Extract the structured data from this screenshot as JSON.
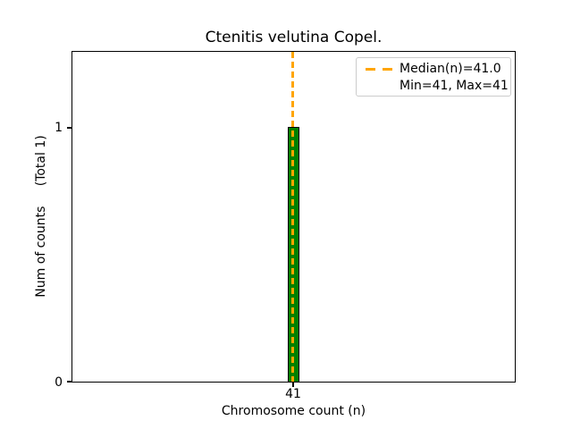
{
  "chart_data": {
    "type": "bar",
    "title": "Ctenitis velutina Copel.",
    "xlabel": "Chromosome count (n)",
    "ylabel": "Num of counts     (Total 1)",
    "categories": [
      "41"
    ],
    "x": [
      41
    ],
    "values": [
      1
    ],
    "xtick_labels": [
      "41"
    ],
    "ytick_labels": [
      "0",
      "1"
    ],
    "ylim": [
      0,
      1.3
    ],
    "grid": false,
    "stats": {
      "median": 41.0,
      "min": 41,
      "max": 41,
      "total_counts": 1
    },
    "median_line": {
      "value": 41.0,
      "style": "dashed",
      "orientation": "vertical"
    },
    "legend": {
      "position": "upper right",
      "items": [
        {
          "label": "Median(n)=41.0",
          "marker": "dashed-line",
          "color": "#FFA500"
        },
        {
          "label": "Min=41, Max=41",
          "marker": "none"
        }
      ]
    },
    "colors": {
      "bar_fill": "#008000",
      "bar_edge": "#000000",
      "median_line": "#FFA500",
      "axis": "#000000",
      "legend_border": "#CCCCCC",
      "background": "#FFFFFF"
    }
  }
}
